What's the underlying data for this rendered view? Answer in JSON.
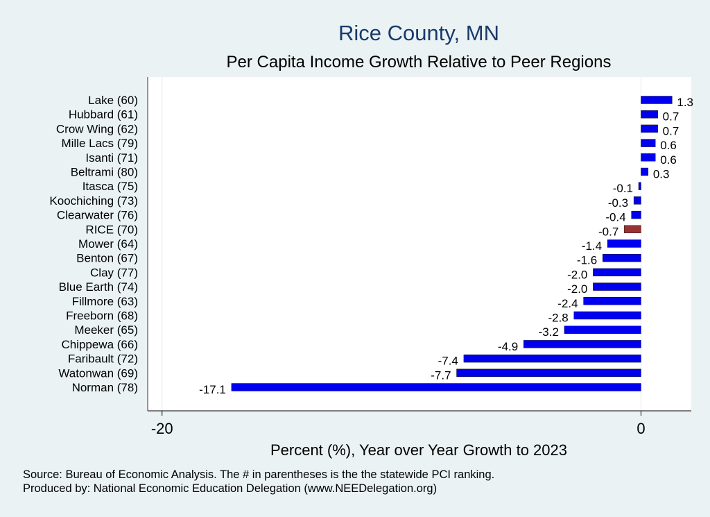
{
  "chart_data": {
    "type": "bar",
    "orientation": "horizontal",
    "title": "Rice County, MN",
    "subtitle": "Per Capita Income Growth Relative to Peer Regions",
    "xlabel": "Percent (%), Year over Year Growth to 2023",
    "xlim": [
      -20.6,
      2.1
    ],
    "xticks": [
      -20,
      0
    ],
    "xtick_labels": [
      "-20",
      "0"
    ],
    "grid": "vertical at -20",
    "categories": [
      "Lake (60)",
      "Hubbard (61)",
      "Crow Wing (62)",
      "Mille Lacs (79)",
      "Isanti (71)",
      "Beltrami (80)",
      "Itasca (75)",
      "Koochiching (73)",
      "Clearwater (76)",
      "RICE (70)",
      "Mower (64)",
      "Benton (67)",
      "Clay (77)",
      "Blue Earth (74)",
      "Fillmore (63)",
      "Freeborn (68)",
      "Meeker (65)",
      "Chippewa (66)",
      "Faribault (72)",
      "Watonwan (69)",
      "Norman (78)"
    ],
    "values": [
      1.3,
      0.7,
      0.7,
      0.6,
      0.6,
      0.3,
      -0.1,
      -0.3,
      -0.4,
      -0.7,
      -1.4,
      -1.6,
      -2.0,
      -2.0,
      -2.4,
      -2.8,
      -3.2,
      -4.9,
      -7.4,
      -7.7,
      -17.1
    ],
    "value_labels": [
      "1.3",
      "0.7",
      "0.7",
      "0.6",
      "0.6",
      "0.3",
      "-0.1",
      "-0.3",
      "-0.4",
      "-0.7",
      "-1.4",
      "-1.6",
      "-2.0",
      "-2.0",
      "-2.4",
      "-2.8",
      "-3.2",
      "-4.9",
      "-7.4",
      "-7.7",
      "-17.1"
    ],
    "highlight_category": "RICE (70)",
    "colors": {
      "bar": "#0000ee",
      "highlight": "#993333",
      "title": "#1a3a6b",
      "plot_bg": "#ffffff",
      "page_bg": "#eaf2f3"
    }
  },
  "footer": {
    "source": "Source: Bureau of Economic Analysis. The # in parentheses is the the statewide PCI ranking.",
    "produced": "Produced by: National Economic Education Delegation (www.NEEDelegation.org)"
  }
}
